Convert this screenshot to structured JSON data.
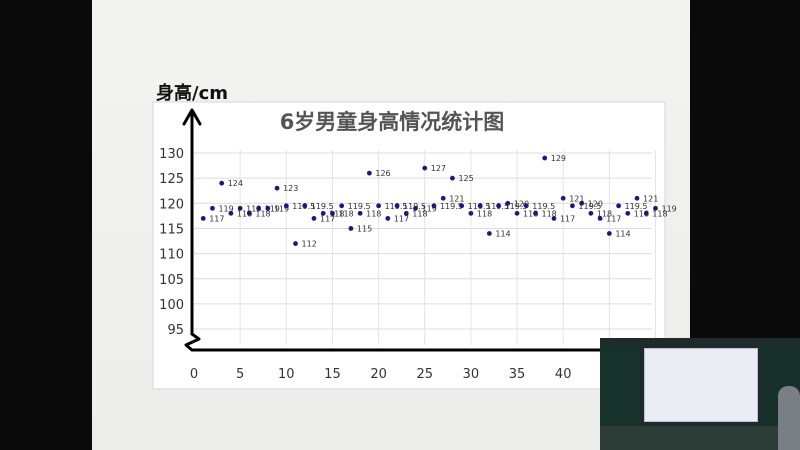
{
  "chart_data": {
    "type": "scatter",
    "title": "6岁男童身高情况统计图",
    "ylabel": "身高/cm",
    "xlim": [
      0,
      50
    ],
    "ylim": [
      95,
      130
    ],
    "y_ticks": [
      "130",
      "125",
      "120",
      "115",
      "110",
      "105",
      "100",
      "95"
    ],
    "x_ticks": [
      "0",
      "5",
      "10",
      "15",
      "20",
      "25",
      "30",
      "35",
      "40"
    ],
    "grid": true,
    "series": [
      {
        "color": "#1a1a7e",
        "x": [
          1,
          2,
          3,
          4,
          5,
          6,
          7,
          8,
          9,
          10,
          11,
          12,
          13,
          14,
          15,
          16,
          17,
          18,
          19,
          20,
          21,
          22,
          23,
          24,
          25,
          26,
          27,
          28,
          29,
          30,
          31,
          32,
          33,
          34,
          35,
          36,
          37,
          38,
          39,
          40,
          41,
          42,
          43,
          44,
          45,
          46,
          47,
          48,
          49,
          50
        ],
        "y": [
          117,
          119,
          124,
          118,
          119,
          118,
          119,
          119,
          123,
          119.5,
          112,
          119.5,
          117,
          118,
          118,
          119.5,
          115,
          118,
          126,
          119.5,
          117,
          119.5,
          118,
          119,
          127,
          119.5,
          121,
          125,
          119.5,
          118,
          119.5,
          114,
          119.5,
          120,
          118,
          119.5,
          118,
          129,
          117,
          121,
          119.5,
          120,
          118,
          117,
          114,
          119.5,
          118,
          121,
          118,
          119
        ],
        "labels": [
          "117",
          "119",
          "124",
          "118",
          "119",
          "118",
          "119",
          "119",
          "123",
          "119.5",
          "112",
          "119.5",
          "117",
          "118",
          "118",
          "119.5",
          "115",
          "118",
          "126",
          "119.5",
          "117",
          "119.5",
          "118",
          "119",
          "127",
          "119.5",
          "121",
          "125",
          "119.5",
          "118",
          "119.5",
          "114",
          "119.5",
          "120",
          "118",
          "119.5",
          "118",
          "129",
          "117",
          "121",
          "119.5",
          "120",
          "118",
          "117",
          "114",
          "119.5",
          "118",
          "121",
          "118",
          "119"
        ]
      }
    ]
  },
  "inset": {
    "scene": "classroom"
  }
}
